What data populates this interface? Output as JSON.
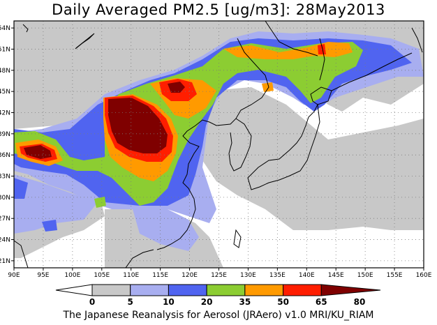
{
  "title": "Daily Averaged PM2.5 [ug/m3]: 28May2013",
  "credit": "The Japanese Reanalysis for Aerosol (JRAero) v1.0 MRI/KU_RIAM",
  "map": {
    "lon_range": [
      90,
      160
    ],
    "lat_range": [
      20,
      55
    ],
    "lon_ticks": [
      "90E",
      "95E",
      "100E",
      "105E",
      "110E",
      "115E",
      "120E",
      "125E",
      "130E",
      "135E",
      "140E",
      "145E",
      "150E",
      "155E",
      "160E"
    ],
    "lat_ticks": [
      "21N",
      "24N",
      "27N",
      "30N",
      "33N",
      "36N",
      "39N",
      "42N",
      "45N",
      "48N",
      "51N",
      "54N"
    ],
    "grid": "dotted",
    "coastline_color": "#000000"
  },
  "colorbar": {
    "labels": [
      "0",
      "5",
      "10",
      "20",
      "35",
      "50",
      "65",
      "80"
    ],
    "colors": [
      "#ffffff",
      "#c8c8c8",
      "#a8aef0",
      "#5064f0",
      "#8ccd32",
      "#ff9a00",
      "#ff1e00",
      "#7f0000"
    ]
  }
}
